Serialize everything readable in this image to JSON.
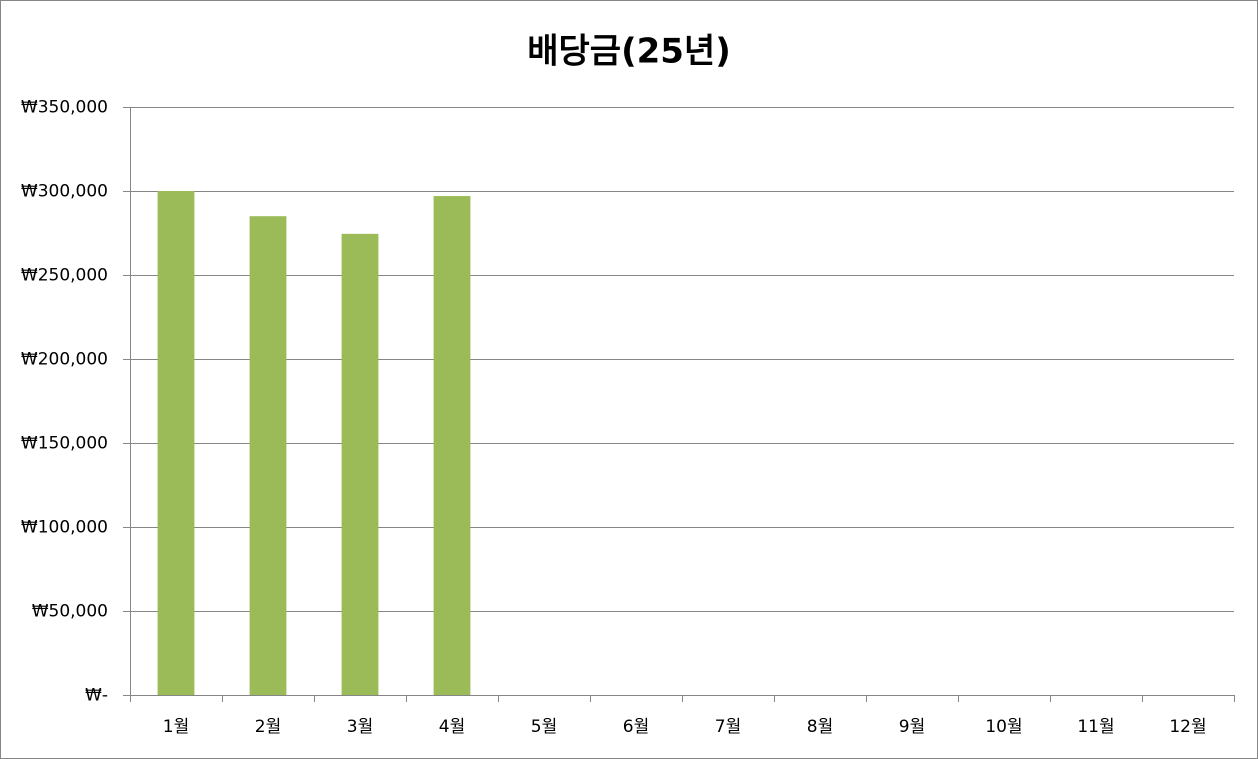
{
  "chart_data": {
    "type": "bar",
    "title": "배당금(25년)",
    "categories": [
      "1월",
      "2월",
      "3월",
      "4월",
      "5월",
      "6월",
      "7월",
      "8월",
      "9월",
      "10월",
      "11월",
      "12월"
    ],
    "values": [
      300000,
      285000,
      274500,
      297000,
      null,
      null,
      null,
      null,
      null,
      null,
      null,
      null
    ],
    "color": "#9bbb59",
    "ylim": [
      0,
      350000
    ],
    "yticks": [
      {
        "value": 0,
        "label": "₩-"
      },
      {
        "value": 50000,
        "label": "₩50,000"
      },
      {
        "value": 100000,
        "label": "₩100,000"
      },
      {
        "value": 150000,
        "label": "₩150,000"
      },
      {
        "value": 200000,
        "label": "₩200,000"
      },
      {
        "value": 250000,
        "label": "₩250,000"
      },
      {
        "value": 300000,
        "label": "₩300,000"
      },
      {
        "value": 350000,
        "label": "₩350,000"
      }
    ],
    "grid": true
  }
}
